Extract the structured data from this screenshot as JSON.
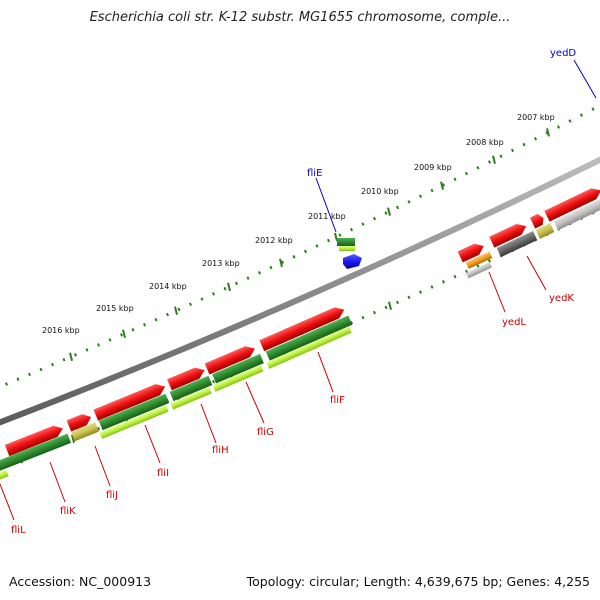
{
  "title": "Escherichia coli str. K-12 substr. MG1655 chromosome, comple...",
  "footer": {
    "accession": "Accession: NC_000913",
    "topology": "Topology: circular; Length: 4,639,675 bp; Genes: 4,255"
  },
  "scale_labels": [
    "2007 kbp",
    "2008 kbp",
    "2009 kbp",
    "2010 kbp",
    "2011 kbp",
    "2012 kbp",
    "2013 kbp",
    "2014 kbp",
    "2015 kbp",
    "2016 kbp"
  ],
  "gene_labels": [
    {
      "text": "yedD",
      "color": "#0000cc"
    },
    {
      "text": "fliE",
      "color": "#0000cc"
    },
    {
      "text": "yedK",
      "color": "#cc0000"
    },
    {
      "text": "yedL",
      "color": "#cc0000"
    },
    {
      "text": "fliF",
      "color": "#cc0000"
    },
    {
      "text": "fliG",
      "color": "#cc0000"
    },
    {
      "text": "fliH",
      "color": "#cc0000"
    },
    {
      "text": "fliI",
      "color": "#cc0000"
    },
    {
      "text": "fliJ",
      "color": "#cc0000"
    },
    {
      "text": "fliK",
      "color": "#cc0000"
    },
    {
      "text": "fliL",
      "color": "#cc0000"
    }
  ],
  "colors": {
    "cds": "#ee1111",
    "gene": "#2e8b2e",
    "gene_alt": "#b8f040",
    "rna": "#1a1aee",
    "backbone": "#8a8a8a",
    "scale": "#2e7d1f",
    "pseudo": "#666666",
    "misc": "#f0a020"
  }
}
